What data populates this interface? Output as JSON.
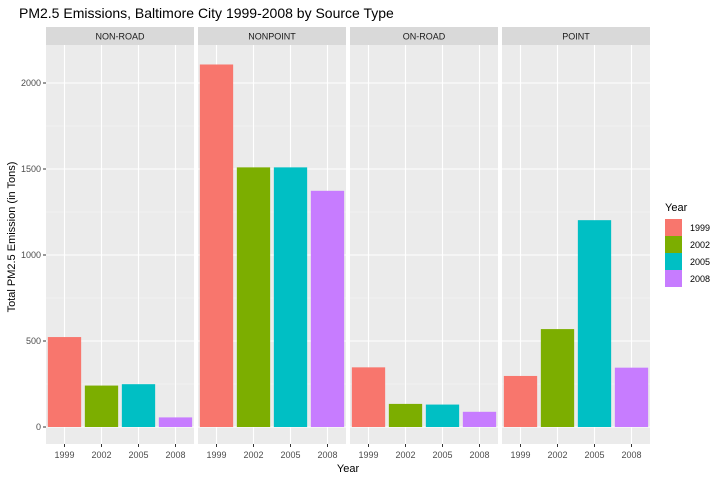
{
  "chart_data": {
    "type": "bar",
    "title": "PM2.5 Emissions, Baltimore City 1999-2008 by Source Type",
    "xlabel": "Year",
    "ylabel": "Total PM2.5 Emission (in Tons)",
    "categories": [
      "1999",
      "2002",
      "2005",
      "2008"
    ],
    "ylim": [
      0,
      2200
    ],
    "y_ticks": [
      0,
      500,
      1000,
      1500,
      2000
    ],
    "grid": true,
    "legend": {
      "title": "Year",
      "placement": "right"
    },
    "colors": [
      "#F8766D",
      "#7CAE00",
      "#00BFC4",
      "#C77CFF"
    ],
    "facets": [
      {
        "name": "NON-ROAD",
        "values": [
          522.94,
          240.85,
          248.93,
          55.82
        ]
      },
      {
        "name": "NONPOINT",
        "values": [
          2107.63,
          1509.5,
          1509.5,
          1373.21
        ]
      },
      {
        "name": "ON-ROAD",
        "values": [
          346.82,
          134.31,
          130.43,
          88.28
        ]
      },
      {
        "name": "POINT",
        "values": [
          296.8,
          569.26,
          1202.49,
          344.98
        ]
      }
    ]
  }
}
